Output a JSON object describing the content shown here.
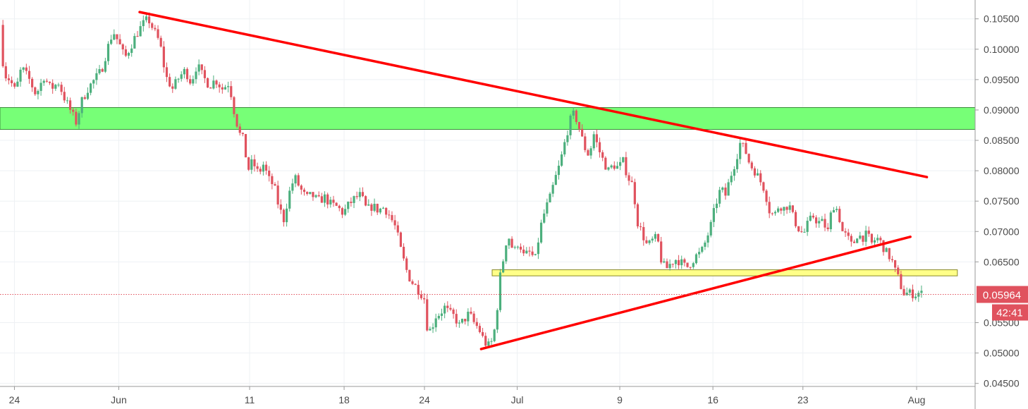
{
  "chart_data": {
    "type": "candlestick",
    "title": "",
    "xlabel": "",
    "ylabel": "",
    "x_ticks": [
      "24",
      "Jun",
      "11",
      "18",
      "24",
      "Jul",
      "9",
      "16",
      "23",
      "Aug"
    ],
    "y_ticks": [
      "0.10500",
      "0.10000",
      "0.09500",
      "0.09000",
      "0.08500",
      "0.08000",
      "0.07500",
      "0.07000",
      "0.06500",
      "0.05500",
      "0.05000",
      "0.04500"
    ],
    "ylim": [
      0.0445,
      0.1081
    ],
    "grid": true,
    "current_price": {
      "value": 0.05964,
      "label": "0.05964"
    },
    "countdown": "42:41",
    "bull_color": "#4caf7d",
    "bear_color": "#e0525e",
    "trendline_color": "#ff0000",
    "resistance_zone": {
      "from": 0.0868,
      "to": 0.0904,
      "color": "#77ff77"
    },
    "support_zone": {
      "from": 0.0627,
      "to": 0.0637,
      "color": "#ffff88"
    },
    "trendlines": [
      {
        "name": "upper",
        "start": {
          "pos": 0.1432,
          "price": 0.10611
        },
        "end": {
          "pos": 0.9505,
          "price": 0.07896
        }
      },
      {
        "name": "lower",
        "start": {
          "pos": 0.4934,
          "price": 0.05066
        },
        "end": {
          "pos": 0.9336,
          "price": 0.06913
        }
      }
    ],
    "price_path": [
      [
        0.0,
        0.104
      ],
      [
        0.004,
        0.096
      ],
      [
        0.01,
        0.095
      ],
      [
        0.016,
        0.093
      ],
      [
        0.022,
        0.097
      ],
      [
        0.03,
        0.095
      ],
      [
        0.037,
        0.0925
      ],
      [
        0.045,
        0.0955
      ],
      [
        0.052,
        0.0935
      ],
      [
        0.06,
        0.0945
      ],
      [
        0.066,
        0.092
      ],
      [
        0.072,
        0.09
      ],
      [
        0.078,
        0.088
      ],
      [
        0.084,
        0.0915
      ],
      [
        0.09,
        0.0935
      ],
      [
        0.097,
        0.095
      ],
      [
        0.104,
        0.0965
      ],
      [
        0.11,
        0.1
      ],
      [
        0.116,
        0.103
      ],
      [
        0.122,
        0.101
      ],
      [
        0.128,
        0.0985
      ],
      [
        0.134,
        0.1005
      ],
      [
        0.14,
        0.1025
      ],
      [
        0.146,
        0.104
      ],
      [
        0.152,
        0.105
      ],
      [
        0.158,
        0.103
      ],
      [
        0.164,
        0.101
      ],
      [
        0.17,
        0.0955
      ],
      [
        0.177,
        0.0935
      ],
      [
        0.184,
        0.0955
      ],
      [
        0.19,
        0.0965
      ],
      [
        0.196,
        0.0945
      ],
      [
        0.202,
        0.0975
      ],
      [
        0.208,
        0.0955
      ],
      [
        0.215,
        0.094
      ],
      [
        0.221,
        0.095
      ],
      [
        0.228,
        0.0935
      ],
      [
        0.235,
        0.0945
      ],
      [
        0.241,
        0.089
      ],
      [
        0.246,
        0.086
      ],
      [
        0.25,
        0.085
      ],
      [
        0.254,
        0.08
      ],
      [
        0.259,
        0.0815
      ],
      [
        0.265,
        0.0795
      ],
      [
        0.27,
        0.081
      ],
      [
        0.276,
        0.0785
      ],
      [
        0.281,
        0.0775
      ],
      [
        0.286,
        0.074
      ],
      [
        0.291,
        0.072
      ],
      [
        0.296,
        0.076
      ],
      [
        0.302,
        0.079
      ],
      [
        0.308,
        0.077
      ],
      [
        0.314,
        0.0755
      ],
      [
        0.32,
        0.076
      ],
      [
        0.326,
        0.075
      ],
      [
        0.333,
        0.0756
      ],
      [
        0.339,
        0.0745
      ],
      [
        0.346,
        0.074
      ],
      [
        0.352,
        0.073
      ],
      [
        0.358,
        0.0745
      ],
      [
        0.364,
        0.0755
      ],
      [
        0.37,
        0.076
      ],
      [
        0.376,
        0.0735
      ],
      [
        0.382,
        0.0742
      ],
      [
        0.388,
        0.0735
      ],
      [
        0.394,
        0.074
      ],
      [
        0.4,
        0.0725
      ],
      [
        0.406,
        0.0705
      ],
      [
        0.411,
        0.067
      ],
      [
        0.416,
        0.064
      ],
      [
        0.421,
        0.062
      ],
      [
        0.426,
        0.061
      ],
      [
        0.431,
        0.06
      ],
      [
        0.435,
        0.059
      ],
      [
        0.438,
        0.0545
      ],
      [
        0.442,
        0.0535
      ],
      [
        0.446,
        0.056
      ],
      [
        0.451,
        0.0565
      ],
      [
        0.456,
        0.0575
      ],
      [
        0.461,
        0.0565
      ],
      [
        0.466,
        0.056
      ],
      [
        0.471,
        0.0545
      ],
      [
        0.476,
        0.0555
      ],
      [
        0.481,
        0.0565
      ],
      [
        0.486,
        0.055
      ],
      [
        0.491,
        0.054
      ],
      [
        0.495,
        0.0525
      ],
      [
        0.5,
        0.051
      ],
      [
        0.505,
        0.052
      ],
      [
        0.509,
        0.0555
      ],
      [
        0.512,
        0.062
      ],
      [
        0.515,
        0.064
      ],
      [
        0.518,
        0.068
      ],
      [
        0.522,
        0.069
      ],
      [
        0.527,
        0.0665
      ],
      [
        0.532,
        0.0685
      ],
      [
        0.537,
        0.066
      ],
      [
        0.543,
        0.0665
      ],
      [
        0.549,
        0.0655
      ],
      [
        0.554,
        0.0705
      ],
      [
        0.559,
        0.0735
      ],
      [
        0.564,
        0.0755
      ],
      [
        0.569,
        0.0785
      ],
      [
        0.574,
        0.081
      ],
      [
        0.579,
        0.0845
      ],
      [
        0.584,
        0.088
      ],
      [
        0.589,
        0.0895
      ],
      [
        0.594,
        0.087
      ],
      [
        0.599,
        0.084
      ],
      [
        0.604,
        0.0825
      ],
      [
        0.609,
        0.086
      ],
      [
        0.614,
        0.0835
      ],
      [
        0.619,
        0.0815
      ],
      [
        0.624,
        0.08
      ],
      [
        0.629,
        0.081
      ],
      [
        0.634,
        0.0805
      ],
      [
        0.639,
        0.0815
      ],
      [
        0.644,
        0.079
      ],
      [
        0.649,
        0.0775
      ],
      [
        0.654,
        0.0715
      ],
      [
        0.659,
        0.0695
      ],
      [
        0.664,
        0.0675
      ],
      [
        0.669,
        0.0685
      ],
      [
        0.674,
        0.069
      ],
      [
        0.679,
        0.0645
      ],
      [
        0.684,
        0.064
      ],
      [
        0.689,
        0.065
      ],
      [
        0.694,
        0.0655
      ],
      [
        0.699,
        0.0648
      ],
      [
        0.704,
        0.064
      ],
      [
        0.709,
        0.065
      ],
      [
        0.714,
        0.066
      ],
      [
        0.719,
        0.0665
      ],
      [
        0.724,
        0.0685
      ],
      [
        0.729,
        0.071
      ],
      [
        0.734,
        0.0745
      ],
      [
        0.739,
        0.077
      ],
      [
        0.744,
        0.076
      ],
      [
        0.749,
        0.079
      ],
      [
        0.754,
        0.0815
      ],
      [
        0.759,
        0.0845
      ],
      [
        0.764,
        0.0835
      ],
      [
        0.769,
        0.081
      ],
      [
        0.774,
        0.08
      ],
      [
        0.779,
        0.0785
      ],
      [
        0.784,
        0.077
      ],
      [
        0.789,
        0.0735
      ],
      [
        0.794,
        0.0725
      ],
      [
        0.799,
        0.0745
      ],
      [
        0.804,
        0.0738
      ],
      [
        0.809,
        0.0745
      ],
      [
        0.814,
        0.072
      ],
      [
        0.819,
        0.0705
      ],
      [
        0.824,
        0.0695
      ],
      [
        0.829,
        0.0715
      ],
      [
        0.834,
        0.0725
      ],
      [
        0.839,
        0.0715
      ],
      [
        0.844,
        0.0715
      ],
      [
        0.849,
        0.07
      ],
      [
        0.854,
        0.0745
      ],
      [
        0.859,
        0.0735
      ],
      [
        0.864,
        0.07
      ],
      [
        0.869,
        0.069
      ],
      [
        0.874,
        0.0675
      ],
      [
        0.879,
        0.0695
      ],
      [
        0.884,
        0.069
      ],
      [
        0.889,
        0.0695
      ],
      [
        0.894,
        0.068
      ],
      [
        0.899,
        0.069
      ],
      [
        0.904,
        0.068
      ],
      [
        0.909,
        0.0665
      ],
      [
        0.914,
        0.0655
      ],
      [
        0.918,
        0.0635
      ],
      [
        0.922,
        0.062
      ],
      [
        0.925,
        0.0605
      ],
      [
        0.928,
        0.0595
      ],
      [
        0.931,
        0.06
      ],
      [
        0.934,
        0.0597
      ],
      [
        0.937,
        0.0598
      ],
      [
        0.94,
        0.0596
      ],
      [
        0.943,
        0.06
      ],
      [
        0.946,
        0.0596
      ]
    ]
  }
}
